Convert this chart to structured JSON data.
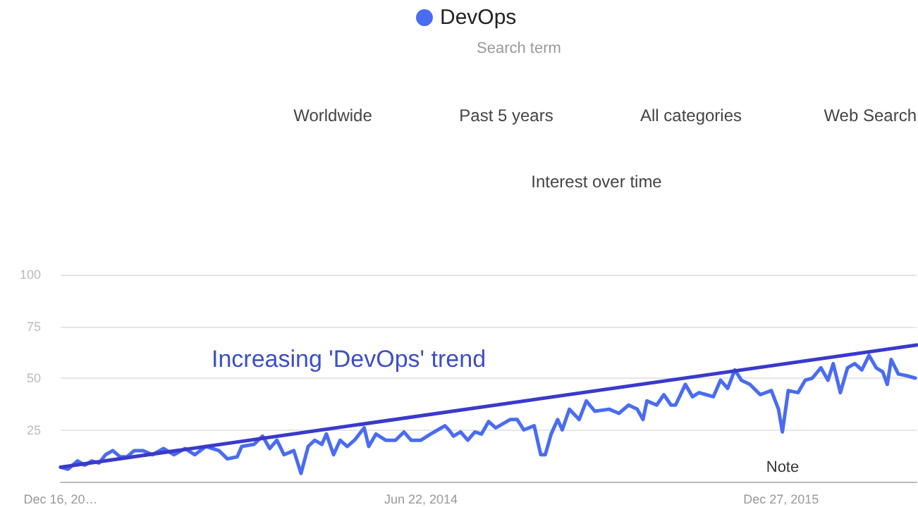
{
  "chart_data": {
    "type": "line",
    "title": "Interest over time",
    "subtitle": "Search term",
    "annotations": [
      "Worldwide",
      "Past 5 years",
      "All categories",
      "Web Search",
      "Increasing 'DevOps' trend",
      "Note"
    ],
    "series": [
      {
        "name": "DevOps",
        "color": "#4a6cf0",
        "x": [
          "2012-12-16",
          "2012-12-27",
          "2013-01-11",
          "2013-01-22",
          "2013-02-02",
          "2013-02-13",
          "2013-02-23",
          "2013-03-06",
          "2013-03-17",
          "2013-03-28",
          "2013-04-08",
          "2013-04-21",
          "2013-05-06",
          "2013-05-23",
          "2013-06-08",
          "2013-06-25",
          "2013-07-10",
          "2013-07-27",
          "2013-08-16",
          "2013-08-29",
          "2013-09-13",
          "2013-09-20",
          "2013-10-09",
          "2013-10-22",
          "2013-11-02",
          "2013-11-13",
          "2013-11-24",
          "2013-12-09",
          "2013-12-20",
          "2013-12-31",
          "2014-01-10",
          "2014-01-21",
          "2014-01-28",
          "2014-02-08",
          "2014-02-18",
          "2014-03-01",
          "2014-03-12",
          "2014-03-27",
          "2014-04-03",
          "2014-04-14",
          "2014-04-29",
          "2014-05-14",
          "2014-05-27",
          "2014-06-07",
          "2014-06-22",
          "2014-07-07",
          "2014-07-18",
          "2014-07-29",
          "2014-08-04",
          "2014-08-11",
          "2014-08-22",
          "2014-09-02",
          "2014-09-13",
          "2014-09-23",
          "2014-10-04",
          "2014-10-15",
          "2014-11-06",
          "2014-11-17",
          "2014-11-27",
          "2014-12-13",
          "2014-12-23",
          "2014-12-30",
          "2015-01-08",
          "2015-01-18",
          "2015-01-25",
          "2015-02-05",
          "2015-02-20",
          "2015-03-03",
          "2015-03-16",
          "2015-04-07",
          "2015-04-22",
          "2015-05-07",
          "2015-05-20",
          "2015-05-29",
          "2015-06-04",
          "2015-06-19",
          "2015-06-30",
          "2015-07-11",
          "2015-07-18",
          "2015-08-02",
          "2015-08-13",
          "2015-08-23",
          "2015-09-03",
          "2015-09-14",
          "2015-09-25",
          "2015-10-06",
          "2015-10-17",
          "2015-10-27",
          "2015-11-09",
          "2015-11-25",
          "2015-12-12",
          "2015-12-23",
          "2015-12-29",
          "2016-01-07",
          "2016-01-22",
          "2016-02-02",
          "2016-02-13",
          "2016-02-26",
          "2016-03-08",
          "2016-03-16",
          "2016-03-27",
          "2016-04-07",
          "2016-04-18",
          "2016-04-29",
          "2016-05-10",
          "2016-05-21",
          "2016-05-31",
          "2016-06-07",
          "2016-06-13",
          "2016-06-24",
          "2016-07-09",
          "2016-07-20"
        ],
        "values": [
          7,
          6,
          10,
          8,
          10,
          9,
          13,
          15,
          12,
          12,
          15,
          15,
          13,
          16,
          13,
          16,
          13,
          17,
          15,
          11,
          12,
          17,
          18,
          22,
          16,
          20,
          13,
          15,
          4,
          17,
          20,
          18,
          23,
          13,
          20,
          17,
          20,
          26,
          17,
          23,
          20,
          20,
          24,
          20,
          20,
          23,
          25,
          27,
          25,
          22,
          24,
          20,
          24,
          23,
          29,
          26,
          30,
          30,
          25,
          27,
          13,
          13,
          23,
          30,
          25,
          35,
          30,
          39,
          34,
          35,
          33,
          37,
          35,
          30,
          39,
          37,
          42,
          37,
          37,
          47,
          41,
          43,
          42,
          41,
          49,
          45,
          54,
          49,
          47,
          42,
          44,
          35,
          24,
          44,
          43,
          49,
          50,
          55,
          49,
          57,
          43,
          55,
          57,
          54,
          61,
          55,
          53,
          47,
          59,
          52,
          51,
          50
        ]
      },
      {
        "type": "line",
        "color": "#3a3acb",
        "x": [
          "2012-12-16",
          "2016-07-22"
        ],
        "values": [
          7,
          66
        ]
      }
    ],
    "xlim": [
      "2012-12-16",
      "2016-07-22"
    ],
    "xticks": [
      {
        "value": "2012-12-16",
        "label": "Dec 16, 20…"
      },
      {
        "value": "2014-06-22",
        "label": "Jun 22, 2014"
      },
      {
        "value": "2015-12-27",
        "label": "Dec 27, 2015"
      }
    ],
    "ylim": [
      0,
      100
    ],
    "yticks": [
      25,
      50,
      75,
      100
    ],
    "grid": "y",
    "legend": "top",
    "marker": "none",
    "line_style": "solid"
  }
}
